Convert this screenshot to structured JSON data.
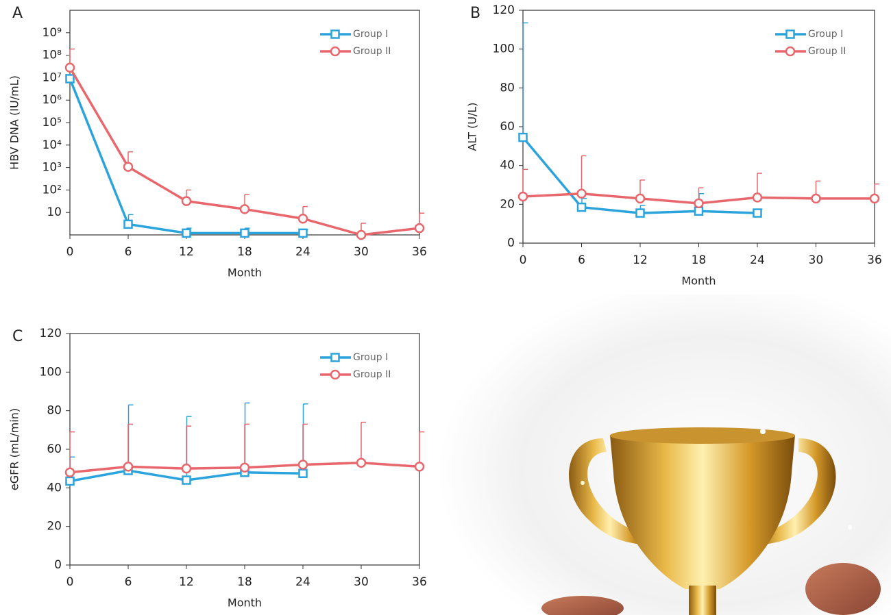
{
  "chart_data": [
    {
      "type": "line",
      "panel": "A",
      "y_label": "HBV DNA (IU/mL)",
      "x_label": "Month",
      "x": [
        0,
        6,
        12,
        18,
        24,
        30,
        36
      ],
      "xlim": [
        0,
        36
      ],
      "xticks": [
        0,
        6,
        12,
        18,
        24,
        30,
        36
      ],
      "ylim": [
        1,
        10000000000
      ],
      "log_scale": true,
      "yticks": [
        10,
        {
          "value": 100,
          "label": "10²"
        },
        {
          "value": 1000,
          "label": "10³"
        },
        {
          "value": 10000,
          "label": "10⁴"
        },
        {
          "value": 100000,
          "label": "10⁵"
        },
        {
          "value": 1000000,
          "label": "10⁶"
        },
        {
          "value": 10000000,
          "label": "10⁷"
        },
        {
          "value": 100000000,
          "label": "10⁸"
        },
        {
          "value": 1000000000,
          "label": "10⁹"
        }
      ],
      "legend": "upper right",
      "series": [
        {
          "name": "Group I",
          "color": "#2ba3dc",
          "marker": "square",
          "values": [
            9000000,
            3,
            1.2,
            1.2,
            1.2,
            null,
            null
          ],
          "errors": [
            null,
            5,
            0.8,
            0.8,
            0.5,
            null,
            null
          ]
        },
        {
          "name": "Group II",
          "color": "#e8676d",
          "marker": "circle",
          "values": [
            28000000,
            1070,
            32,
            14,
            5.3,
            1,
            2
          ],
          "errors": [
            160000000,
            3900,
            68,
            49,
            13,
            2.3,
            7.3
          ]
        }
      ]
    },
    {
      "type": "line",
      "panel": "B",
      "y_label": "ALT (U/L)",
      "x_label": "Month",
      "x": [
        0,
        6,
        12,
        18,
        24,
        30,
        36
      ],
      "xlim": [
        0,
        36
      ],
      "xticks": [
        0,
        6,
        12,
        18,
        24,
        30,
        36
      ],
      "ylim": [
        0,
        120
      ],
      "log_scale": false,
      "yticks": [
        0,
        20,
        40,
        60,
        80,
        100,
        120
      ],
      "legend": "upper right",
      "series": [
        {
          "name": "Group I",
          "color": "#2ba3dc",
          "marker": "square",
          "values": [
            54.5,
            18.5,
            15.5,
            16.5,
            15.5,
            null,
            null
          ],
          "errors": [
            59,
            4.5,
            4,
            9,
            2,
            null,
            null
          ]
        },
        {
          "name": "Group II",
          "color": "#e8676d",
          "marker": "circle",
          "values": [
            24,
            25.5,
            23,
            20.5,
            23.5,
            23,
            23
          ],
          "errors": [
            14,
            19.5,
            9.5,
            8,
            12.5,
            9,
            7.5
          ]
        }
      ]
    },
    {
      "type": "line",
      "panel": "C",
      "y_label": "eGFR (mL/min)",
      "x_label": "Month",
      "x": [
        0,
        6,
        12,
        18,
        24,
        30,
        36
      ],
      "xlim": [
        0,
        36
      ],
      "xticks": [
        0,
        6,
        12,
        18,
        24,
        30,
        36
      ],
      "ylim": [
        0,
        120
      ],
      "log_scale": false,
      "yticks": [
        0,
        20,
        40,
        60,
        80,
        100,
        120
      ],
      "legend": "upper right",
      "series": [
        {
          "name": "Group I",
          "color": "#2ba3dc",
          "marker": "square",
          "values": [
            43.5,
            49,
            44,
            48,
            47.5,
            null,
            null
          ],
          "errors": [
            12.5,
            34,
            33,
            36,
            36,
            null,
            null
          ]
        },
        {
          "name": "Group II",
          "color": "#e8676d",
          "marker": "circle",
          "values": [
            48,
            51,
            50,
            50.5,
            52,
            53,
            51
          ],
          "errors": [
            21,
            22,
            22,
            22.5,
            21,
            21,
            18
          ]
        }
      ]
    }
  ]
}
